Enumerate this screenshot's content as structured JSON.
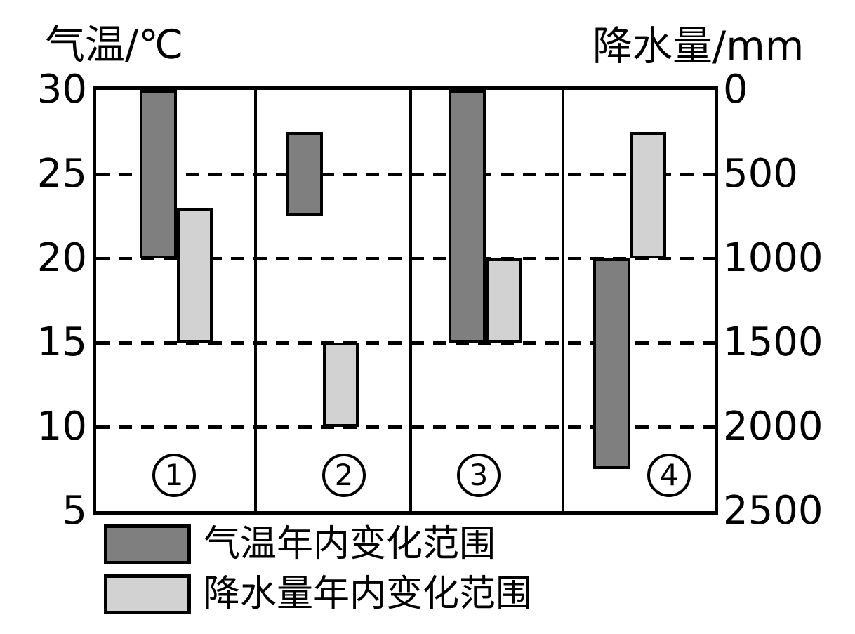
{
  "colors": {
    "temp_bar_fill": "#7f7f7f",
    "precip_bar_fill": "#d2d2d2",
    "line": "#000000",
    "background": "#ffffff"
  },
  "chart_data": {
    "type": "bar",
    "title": "",
    "left_axis": {
      "title": "气温/℃",
      "unit": "℃",
      "ticks": [
        30,
        25,
        20,
        15,
        10,
        5
      ],
      "top_value": 30,
      "bottom_value": 5
    },
    "right_axis": {
      "title": "降水量/mm",
      "unit": "mm",
      "ticks": [
        0,
        500,
        1000,
        1500,
        2000,
        2500
      ],
      "top_value": 0,
      "bottom_value": 2500
    },
    "gridlines_at_temp": [
      25,
      20,
      15,
      10
    ],
    "grid_style": "dashed",
    "panels": [
      {
        "number": "1",
        "temp_range_c": [
          20,
          30
        ],
        "precip_range_mm": [
          700,
          1500
        ]
      },
      {
        "number": "2",
        "temp_range_c": [
          22.5,
          27.5
        ],
        "precip_range_mm": [
          1500,
          2000
        ]
      },
      {
        "number": "3",
        "temp_range_c": [
          15,
          30
        ],
        "precip_range_mm": [
          1000,
          1500
        ]
      },
      {
        "number": "4",
        "temp_range_c": [
          7.5,
          20
        ],
        "precip_range_mm": [
          250,
          1000
        ]
      }
    ],
    "legend": [
      {
        "label": "气温年内变化范围",
        "swatch": "dark-gray",
        "color": "#7f7f7f"
      },
      {
        "label": "降水量年内变化范围",
        "swatch": "light-gray",
        "color": "#d2d2d2"
      }
    ]
  }
}
